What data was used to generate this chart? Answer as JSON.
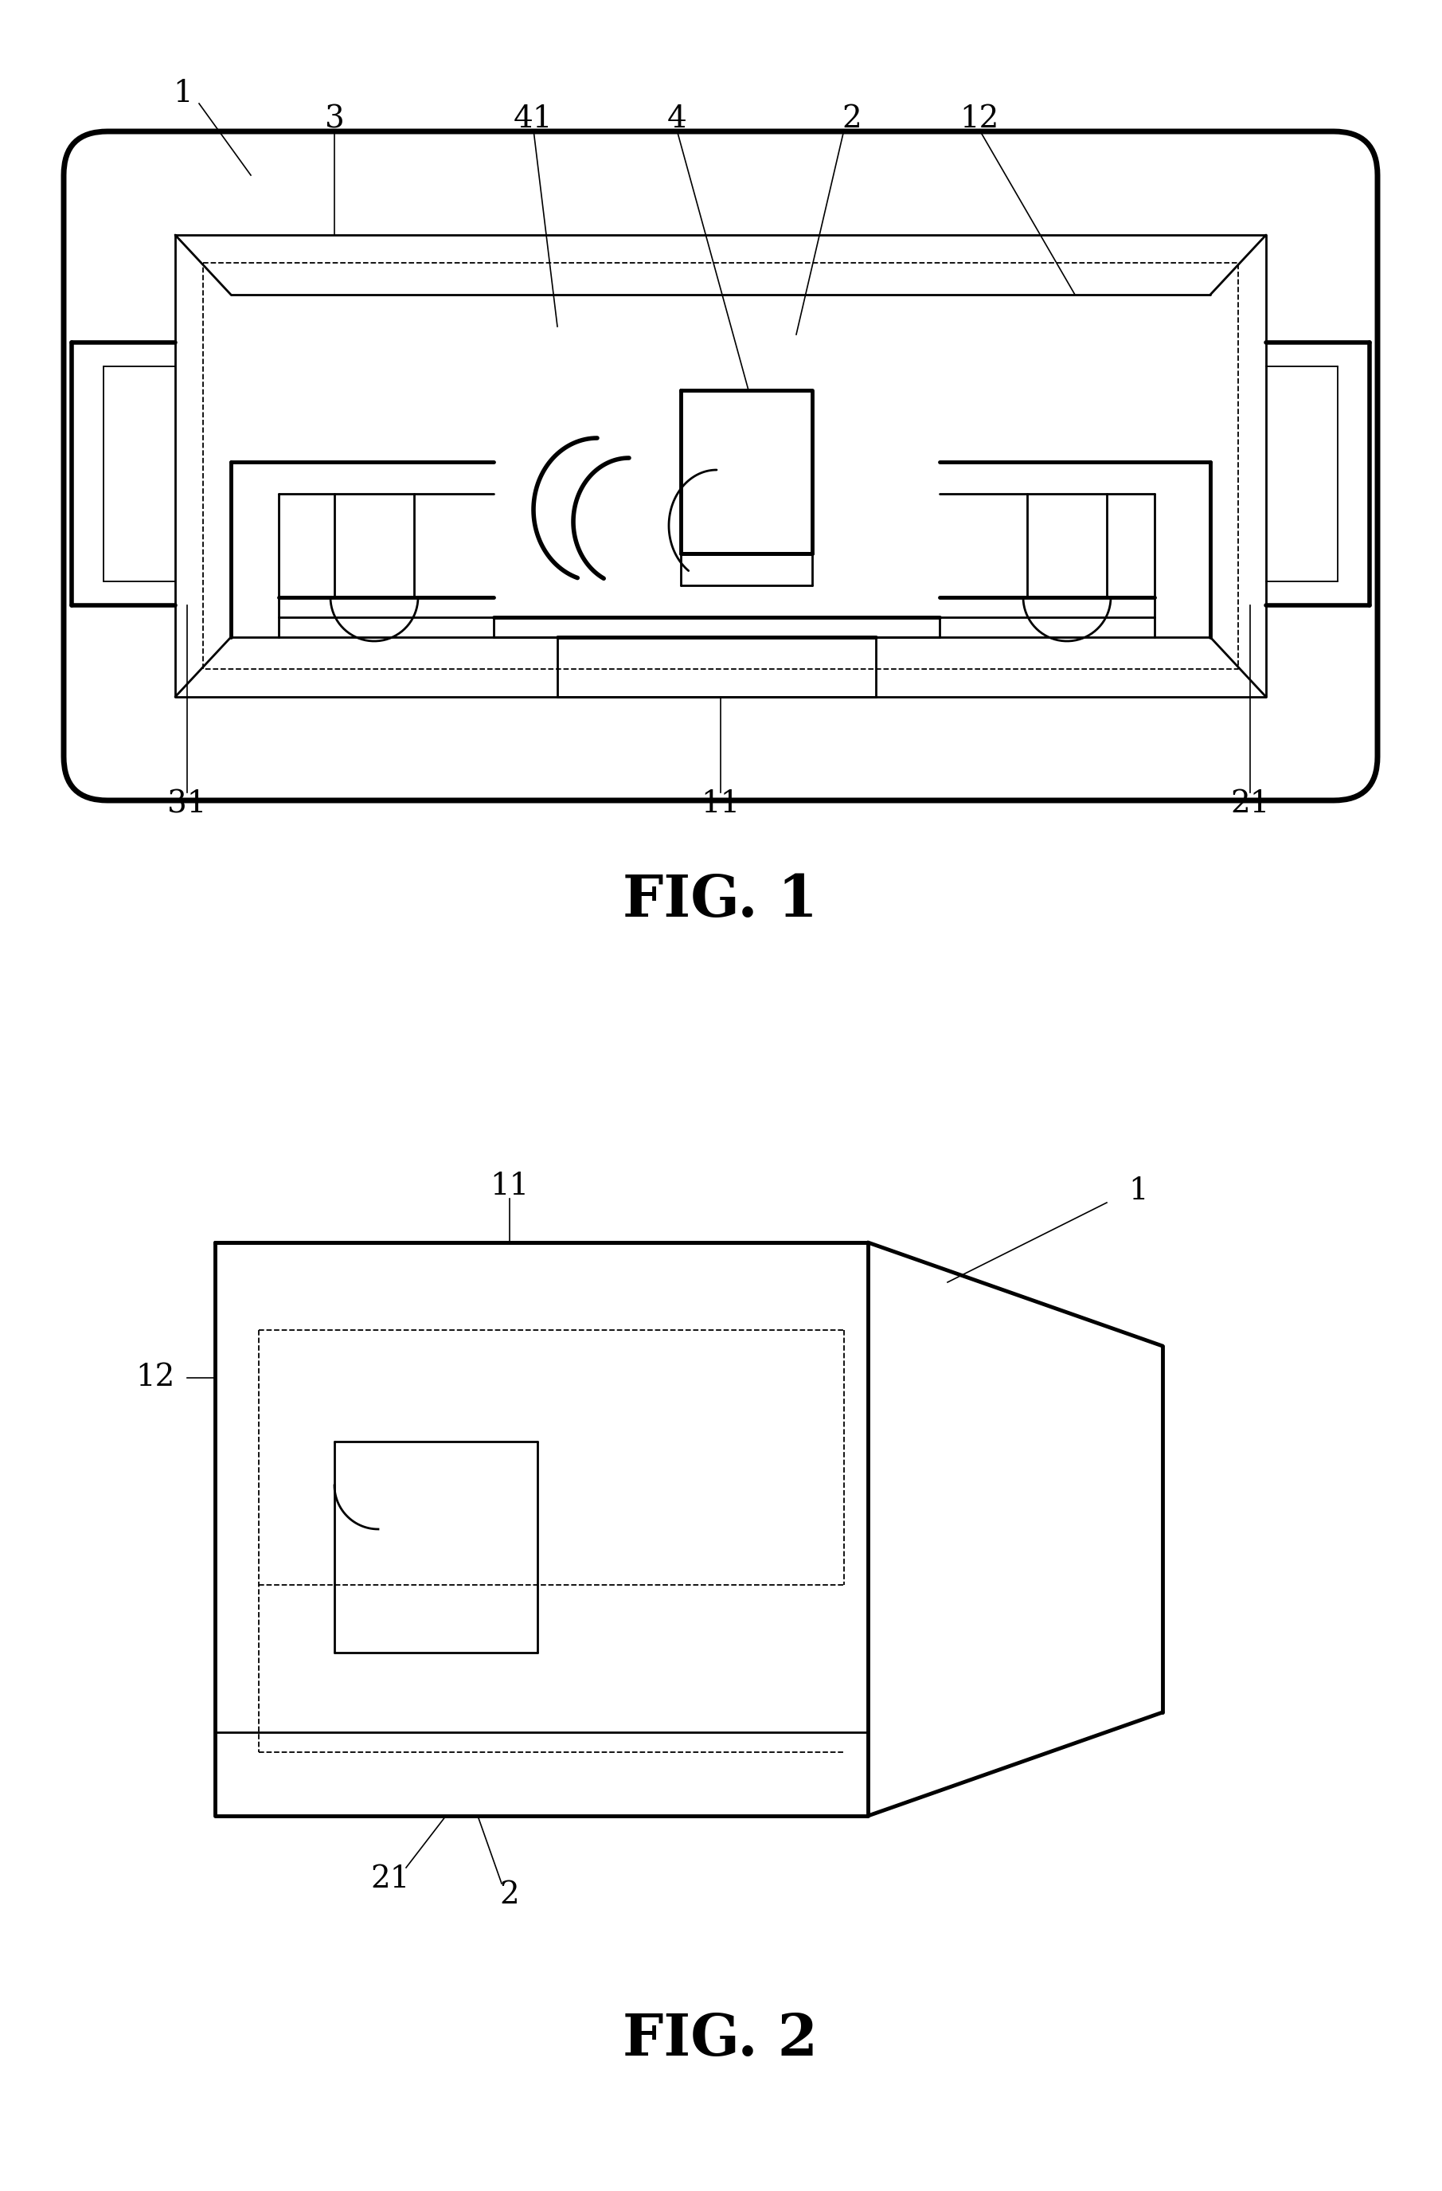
{
  "bg_color": "#ffffff",
  "line_color": "#000000",
  "fig_width": 18.11,
  "fig_height": 27.51,
  "fig1_label": "FIG. 1",
  "fig2_label": "FIG. 2",
  "label_fs": 28,
  "fig_label_fs": 52
}
